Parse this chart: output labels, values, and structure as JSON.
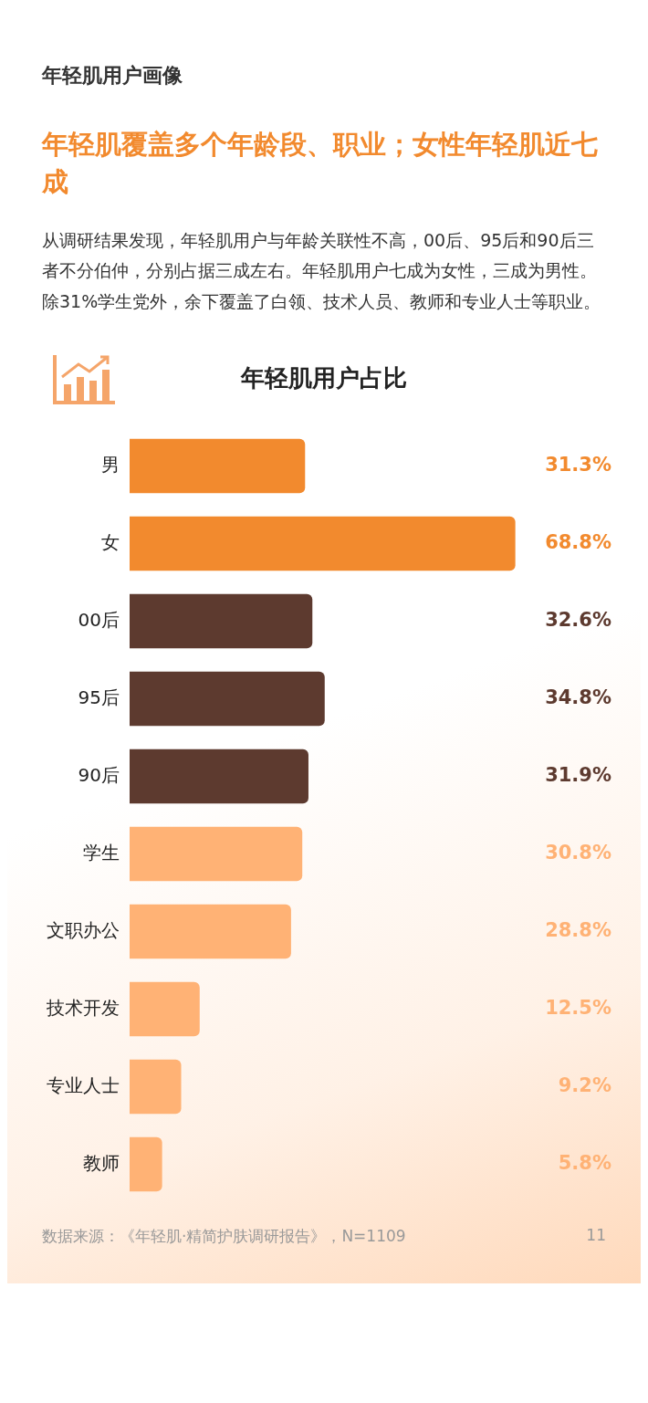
{
  "chart_data": {
    "type": "bar",
    "orientation": "horizontal",
    "title": "年轻肌用户占比",
    "categories": [
      "男",
      "女",
      "00后",
      "95后",
      "90后",
      "学生",
      "文职办公",
      "技术开发",
      "专业人士",
      "教师"
    ],
    "values": [
      31.3,
      68.8,
      32.6,
      34.8,
      31.9,
      30.8,
      28.8,
      12.5,
      9.2,
      5.8
    ],
    "colors": [
      "#f28a2e",
      "#f28a2e",
      "#5d3a2f",
      "#5d3a2f",
      "#5d3a2f",
      "#ffb275",
      "#ffb275",
      "#ffb275",
      "#ffb275",
      "#ffb275"
    ],
    "value_labels": [
      "31.3%",
      "68.8%",
      "32.6%",
      "34.8%",
      "31.9%",
      "30.8%",
      "28.8%",
      "12.5%",
      "9.2%",
      "5.8%"
    ],
    "grid": false,
    "legend": false,
    "tick_labels": "y",
    "annotations": [
      "年轻肌用户画像",
      "年轻肌覆盖多个年龄段、职业；女性年轻肌近七成",
      "从调研结果发现，年轻肌用户与年龄关联性不高，00后、95后和90后三者不分伯仲，分别占据三成左右。年轻肌用户七成为女性，三成为男性。除31%学生党外，余下覆盖了白领、技术人员、教师和专业人士等职业。",
      "数据来源：《年轻肌·精简护肤调研报告》，N=1109",
      "11"
    ]
  }
}
